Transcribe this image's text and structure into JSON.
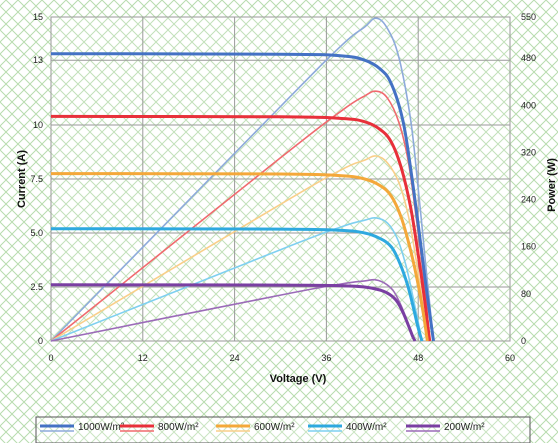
{
  "chart_data": {
    "type": "line",
    "xlabel": "Voltage (V)",
    "ylabel_left": "Current (A)",
    "ylabel_right": "Power (W)",
    "xlim": [
      0,
      60
    ],
    "ylim_left": [
      0,
      15
    ],
    "ylim_right": [
      0,
      550
    ],
    "x_ticks": [
      "0",
      "12",
      "24",
      "36",
      "48",
      "60"
    ],
    "y_left_ticks": [
      "0",
      "2.5",
      "5.0",
      "7.5",
      "10",
      "13",
      "15"
    ],
    "y_right_ticks": [
      "0",
      "80",
      "160",
      "240",
      "320",
      "400",
      "480",
      "550"
    ],
    "grid": true,
    "legend_position": "bottom",
    "series": [
      {
        "name": "1000W/m²",
        "color": "#4472c4",
        "light_color": "#8eaadb",
        "current": [
          [
            0,
            13.3
          ],
          [
            30,
            13.28
          ],
          [
            38,
            13.2
          ],
          [
            41,
            13.0
          ],
          [
            43,
            12.6
          ],
          [
            44.5,
            11.9
          ],
          [
            46,
            10.2
          ],
          [
            47,
            8.0
          ],
          [
            48,
            5.4
          ],
          [
            49,
            2.6
          ],
          [
            50,
            0
          ]
        ],
        "power": [
          [
            0,
            0
          ],
          [
            30,
            398
          ],
          [
            38,
            502
          ],
          [
            41,
            533
          ],
          [
            42.5,
            548
          ],
          [
            44,
            530
          ],
          [
            45.5,
            480
          ],
          [
            47,
            376
          ],
          [
            48,
            259
          ],
          [
            49,
            127
          ],
          [
            50,
            0
          ]
        ]
      },
      {
        "name": "800W/m²",
        "color": "#e8303a",
        "light_color": "#f06a6f",
        "current": [
          [
            0,
            10.4
          ],
          [
            30,
            10.38
          ],
          [
            38,
            10.3
          ],
          [
            41,
            10.15
          ],
          [
            43,
            9.8
          ],
          [
            44.5,
            9.2
          ],
          [
            45.8,
            8.0
          ],
          [
            47,
            6.2
          ],
          [
            48,
            4.0
          ],
          [
            48.8,
            2.0
          ],
          [
            49.5,
            0
          ]
        ],
        "power": [
          [
            0,
            0
          ],
          [
            30,
            311
          ],
          [
            38,
            391
          ],
          [
            41,
            416
          ],
          [
            42.5,
            424
          ],
          [
            44,
            412
          ],
          [
            45.5,
            370
          ],
          [
            46.7,
            305
          ],
          [
            47.8,
            203
          ],
          [
            48.8,
            98
          ],
          [
            49.5,
            0
          ]
        ]
      },
      {
        "name": "600W/m²",
        "color": "#f4a83a",
        "light_color": "#f9cf8a",
        "current": [
          [
            0,
            7.75
          ],
          [
            30,
            7.73
          ],
          [
            38,
            7.65
          ],
          [
            41,
            7.5
          ],
          [
            43,
            7.2
          ],
          [
            44.5,
            6.7
          ],
          [
            45.8,
            5.7
          ],
          [
            47,
            4.2
          ],
          [
            48,
            2.6
          ],
          [
            48.7,
            1.2
          ],
          [
            49.2,
            0
          ]
        ],
        "power": [
          [
            0,
            0
          ],
          [
            30,
            232
          ],
          [
            38,
            291
          ],
          [
            41,
            307
          ],
          [
            42.5,
            314
          ],
          [
            44,
            302
          ],
          [
            45.5,
            268
          ],
          [
            46.7,
            213
          ],
          [
            47.7,
            140
          ],
          [
            48.6,
            62
          ],
          [
            49.2,
            0
          ]
        ]
      },
      {
        "name": "400W/m²",
        "color": "#2ea9df",
        "light_color": "#7fd0f0",
        "current": [
          [
            0,
            5.2
          ],
          [
            30,
            5.18
          ],
          [
            38,
            5.12
          ],
          [
            41,
            5.0
          ],
          [
            43,
            4.75
          ],
          [
            44.5,
            4.35
          ],
          [
            45.6,
            3.6
          ],
          [
            46.6,
            2.6
          ],
          [
            47.4,
            1.5
          ],
          [
            48,
            0.6
          ],
          [
            48.5,
            0
          ]
        ],
        "power": [
          [
            0,
            0
          ],
          [
            30,
            155
          ],
          [
            38,
            194
          ],
          [
            41,
            205
          ],
          [
            42.5,
            209
          ],
          [
            44,
            200
          ],
          [
            45.3,
            173
          ],
          [
            46.4,
            128
          ],
          [
            47.3,
            76
          ],
          [
            48,
            32
          ],
          [
            48.5,
            0
          ]
        ]
      },
      {
        "name": "200W/m²",
        "color": "#7a3fa2",
        "light_color": "#9b6bb8",
        "current": [
          [
            0,
            2.6
          ],
          [
            30,
            2.59
          ],
          [
            38,
            2.56
          ],
          [
            41,
            2.5
          ],
          [
            43,
            2.36
          ],
          [
            44.3,
            2.15
          ],
          [
            45.3,
            1.8
          ],
          [
            46.1,
            1.25
          ],
          [
            46.8,
            0.65
          ],
          [
            47.3,
            0.2
          ],
          [
            47.6,
            0
          ]
        ],
        "power": [
          [
            0,
            0
          ],
          [
            30,
            78
          ],
          [
            38,
            97
          ],
          [
            41,
            102
          ],
          [
            42.3,
            104
          ],
          [
            43.5,
            99
          ],
          [
            44.7,
            86
          ],
          [
            45.7,
            62
          ],
          [
            46.6,
            33
          ],
          [
            47.2,
            12
          ],
          [
            47.6,
            0
          ]
        ]
      }
    ]
  }
}
